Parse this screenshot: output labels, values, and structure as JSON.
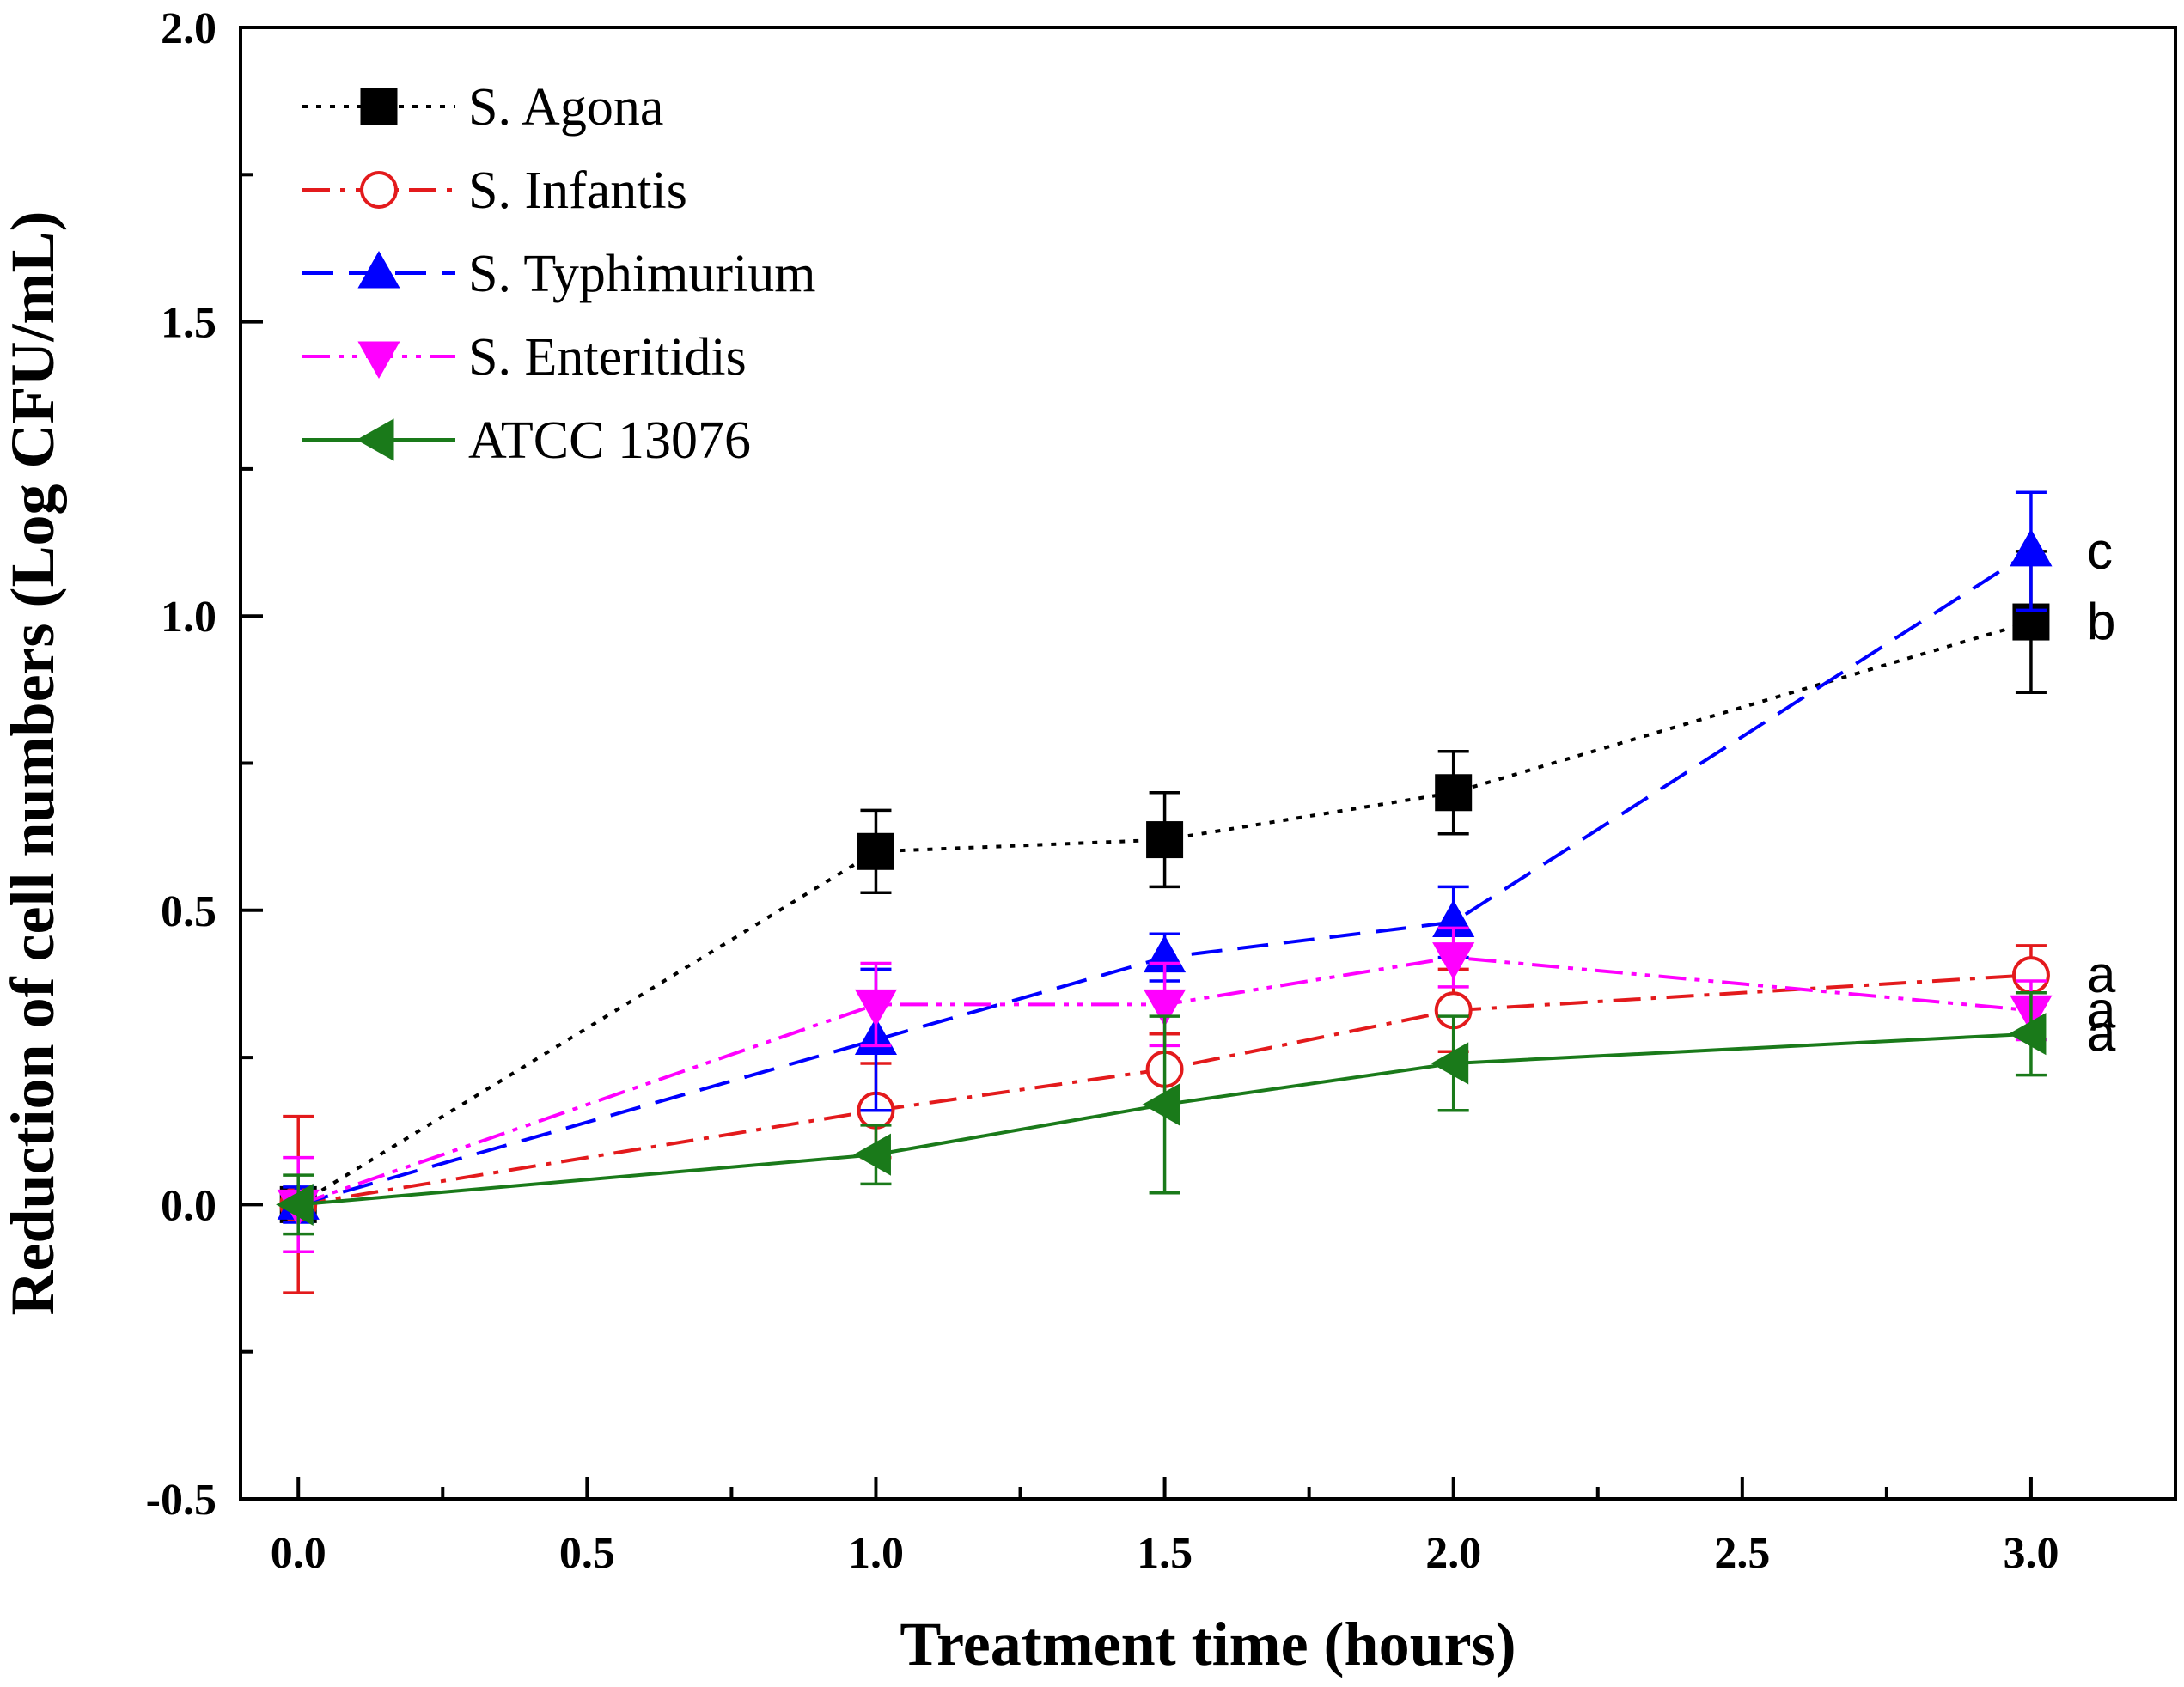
{
  "chart_data": {
    "type": "line",
    "title": "",
    "xlabel": "Treatment time (hours)",
    "ylabel": "Reduction of cell numbers (Log CFU/mL)",
    "xlim": [
      -0.1,
      3.25
    ],
    "ylim": [
      -0.5,
      2.0
    ],
    "x_ticks": [
      0.0,
      0.5,
      1.0,
      1.5,
      2.0,
      2.5,
      3.0
    ],
    "x_tick_labels": [
      "0.0",
      "0.5",
      "1.0",
      "1.5",
      "2.0",
      "2.5",
      "3.0"
    ],
    "y_ticks": [
      -0.5,
      0.0,
      0.5,
      1.0,
      1.5,
      2.0
    ],
    "y_tick_labels": [
      "-0.5",
      "0.0",
      "0.5",
      "1.0",
      "1.5",
      "2.0"
    ],
    "legend_position": "top-left",
    "series": [
      {
        "name": "S. Agona",
        "color": "#000000",
        "marker": "square",
        "marker_fill": "filled",
        "line_style": "dotted",
        "x": [
          0,
          1.0,
          1.5,
          2.0,
          3.0
        ],
        "values": [
          0.0,
          0.6,
          0.62,
          0.7,
          0.99
        ],
        "errors": [
          0.02,
          0.07,
          0.08,
          0.07,
          0.12
        ],
        "letter": "b"
      },
      {
        "name": "S. Infantis",
        "color": "#e31a1c",
        "marker": "circle",
        "marker_fill": "open",
        "line_style": "dashdot",
        "x": [
          0,
          1.0,
          1.5,
          2.0,
          3.0
        ],
        "values": [
          0.0,
          0.16,
          0.23,
          0.33,
          0.39
        ],
        "errors": [
          0.15,
          0.08,
          0.06,
          0.07,
          0.05
        ],
        "letter": "a"
      },
      {
        "name": "S. Typhimurium",
        "color": "#0000ff",
        "marker": "triangle-up",
        "marker_fill": "filled",
        "line_style": "dashed",
        "x": [
          0,
          1.0,
          1.5,
          2.0,
          3.0
        ],
        "values": [
          0.0,
          0.28,
          0.42,
          0.48,
          1.11
        ],
        "errors": [
          0.03,
          0.12,
          0.04,
          0.06,
          0.1
        ],
        "letter": "c"
      },
      {
        "name": "S. Enteritidis",
        "color": "#ff00ff",
        "marker": "triangle-down",
        "marker_fill": "filled",
        "line_style": "dashdotdot",
        "x": [
          0,
          1.0,
          1.5,
          2.0,
          3.0
        ],
        "values": [
          0.0,
          0.34,
          0.34,
          0.42,
          0.33
        ],
        "errors": [
          0.08,
          0.07,
          0.07,
          0.05,
          0.05
        ],
        "letter": "a"
      },
      {
        "name": "ATCC 13076",
        "color": "#1a7a1a",
        "marker": "triangle-left",
        "marker_fill": "filled",
        "line_style": "solid",
        "x": [
          0,
          1.0,
          1.5,
          2.0,
          3.0
        ],
        "values": [
          0.0,
          0.085,
          0.17,
          0.24,
          0.29
        ],
        "errors": [
          0.05,
          0.05,
          0.15,
          0.08,
          0.07
        ],
        "letter": "a"
      }
    ]
  }
}
